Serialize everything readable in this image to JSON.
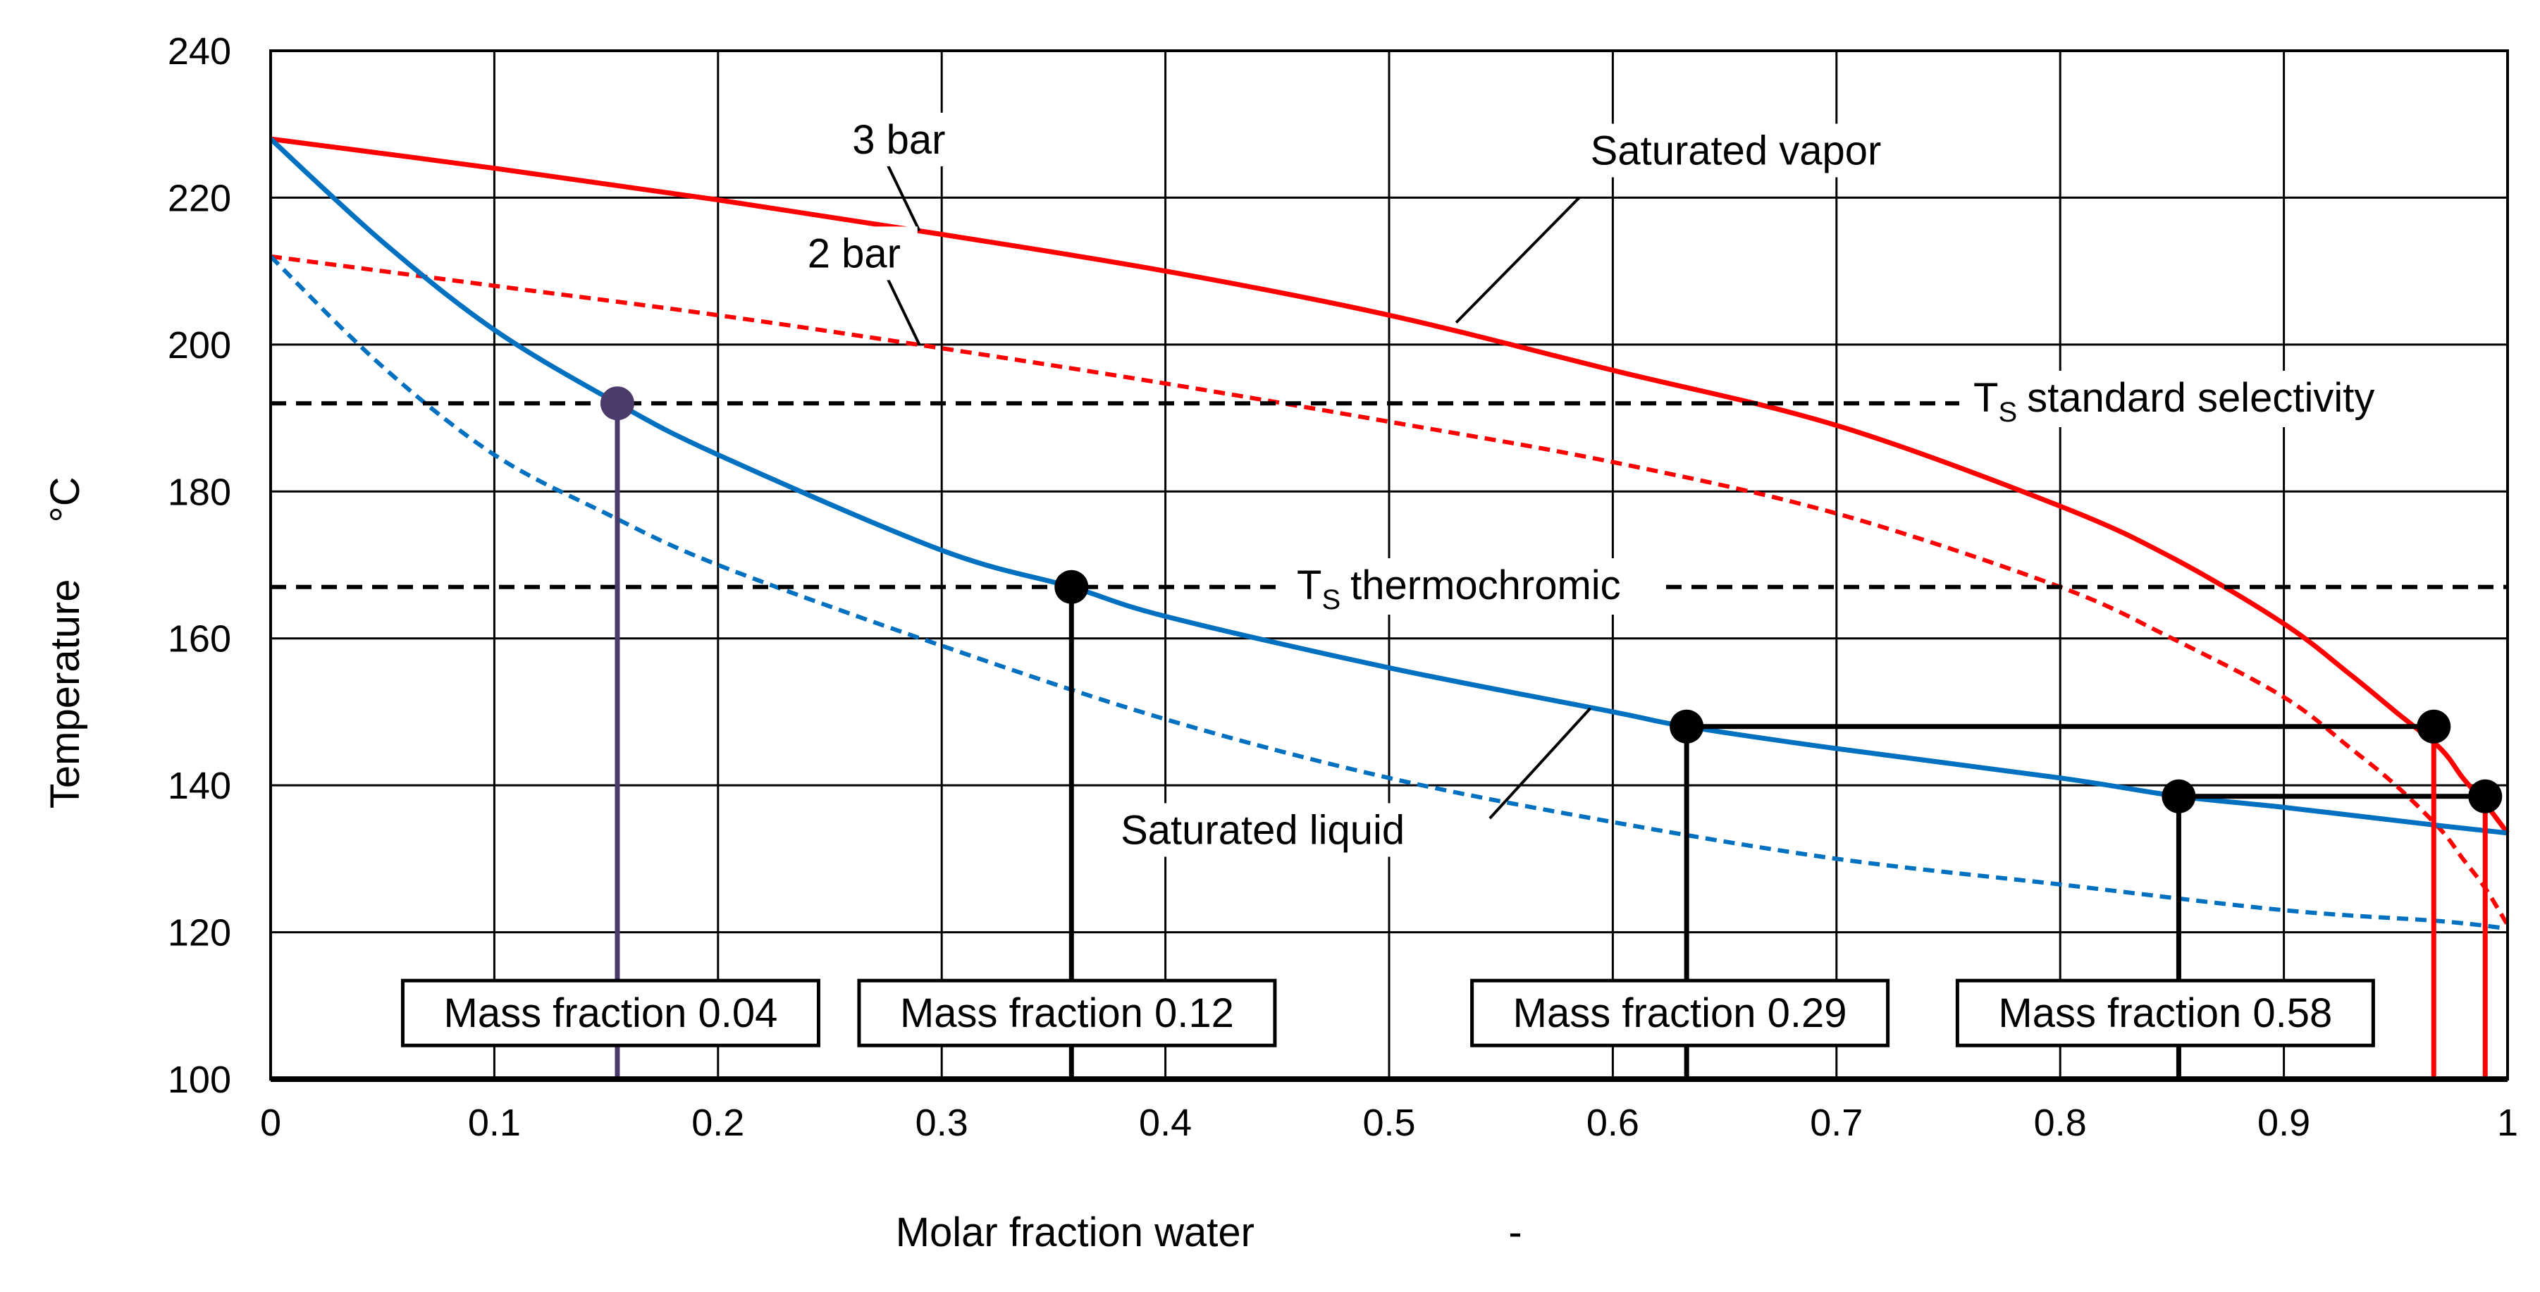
{
  "chart_data": {
    "type": "line",
    "title": "",
    "xlabel": "Molar fraction water",
    "xunit": "-",
    "ylabel": "Temperature",
    "yunit": "°C",
    "xlim": [
      0,
      1
    ],
    "ylim": [
      100,
      240
    ],
    "x_ticks": [
      0,
      0.1,
      0.2,
      0.3,
      0.4,
      0.5,
      0.6,
      0.7,
      0.8,
      0.9,
      1
    ],
    "x_tick_labels": [
      "0",
      "0.1",
      "0.2",
      "0.3",
      "0.4",
      "0.5",
      "0.6",
      "0.7",
      "0.8",
      "0.9",
      "1"
    ],
    "y_ticks": [
      100,
      120,
      140,
      160,
      180,
      200,
      220,
      240
    ],
    "y_tick_labels": [
      "100",
      "120",
      "140",
      "160",
      "180",
      "200",
      "220",
      "240"
    ],
    "grid": true,
    "series": [
      {
        "name": "Saturated vapor 3 bar",
        "color": "#ff0000",
        "dash": "solid",
        "x": [
          0,
          0.1,
          0.2,
          0.3,
          0.4,
          0.5,
          0.6,
          0.7,
          0.8,
          0.85,
          0.9,
          0.93,
          0.95,
          0.97,
          0.98,
          0.99,
          1.0
        ],
        "y": [
          228,
          224,
          219.7,
          215,
          210,
          204,
          196.5,
          189,
          178,
          171,
          162,
          155,
          150,
          145,
          141,
          137.5,
          133.5
        ]
      },
      {
        "name": "Saturated vapor 2 bar",
        "color": "#ff0000",
        "dash": "dashed",
        "x": [
          0,
          0.1,
          0.2,
          0.3,
          0.4,
          0.5,
          0.6,
          0.7,
          0.8,
          0.85,
          0.9,
          0.93,
          0.95,
          0.97,
          0.98,
          0.99,
          1.0
        ],
        "y": [
          212,
          208,
          204,
          199.5,
          194.7,
          189.5,
          184,
          177,
          167,
          160,
          152,
          145,
          140,
          134,
          130,
          126,
          121
        ]
      },
      {
        "name": "Saturated liquid 3 bar",
        "color": "#0070c0",
        "dash": "solid",
        "x": [
          0,
          0.05,
          0.1,
          0.155,
          0.2,
          0.3,
          0.358,
          0.4,
          0.5,
          0.6,
          0.633,
          0.7,
          0.8,
          0.853,
          0.9,
          0.97,
          1.0
        ],
        "y": [
          228,
          214,
          202,
          192,
          185,
          172,
          167,
          163,
          156,
          150,
          148,
          145,
          141,
          138.5,
          137,
          134.5,
          133.5
        ]
      },
      {
        "name": "Saturated liquid 2 bar",
        "color": "#0070c0",
        "dash": "dashed",
        "x": [
          0,
          0.05,
          0.1,
          0.15,
          0.2,
          0.3,
          0.4,
          0.5,
          0.6,
          0.7,
          0.8,
          0.9,
          0.97,
          1.0
        ],
        "y": [
          212,
          197,
          185,
          177,
          170,
          159,
          149,
          141,
          135,
          130,
          126.5,
          123,
          121.5,
          120.5
        ]
      }
    ],
    "hlines": [
      {
        "name": "TS standard selectivity",
        "y": 192,
        "label_main": "T",
        "label_sub": "S",
        "label_rest": "standard selectivity"
      },
      {
        "name": "TS thermochromic",
        "y": 167,
        "label_main": "T",
        "label_sub": "S",
        "label_rest": "thermochromic"
      }
    ],
    "markers": [
      {
        "x": 0.155,
        "y": 192,
        "color": "#4b3b6b"
      },
      {
        "x": 0.358,
        "y": 167,
        "color": "#000000"
      },
      {
        "x": 0.633,
        "y": 148,
        "color": "#000000"
      },
      {
        "x": 0.967,
        "y": 148,
        "color": "#000000"
      },
      {
        "x": 0.853,
        "y": 138.5,
        "color": "#000000"
      },
      {
        "x": 0.99,
        "y": 138.5,
        "color": "#000000"
      }
    ],
    "drop_lines": [
      {
        "x": 0.155,
        "y_top": 192,
        "color": "#4b3b6b"
      },
      {
        "x": 0.358,
        "y_top": 167,
        "color": "#000000"
      },
      {
        "x": 0.633,
        "y_top": 148,
        "color": "#000000"
      },
      {
        "x": 0.853,
        "y_top": 138.5,
        "color": "#000000"
      },
      {
        "x": 0.967,
        "y_top": 148,
        "color": "#ff0000"
      },
      {
        "x": 0.99,
        "y_top": 138.5,
        "color": "#ff0000"
      }
    ],
    "tie_lines": [
      {
        "x1": 0.633,
        "x2": 0.967,
        "y": 148
      },
      {
        "x1": 0.853,
        "x2": 0.99,
        "y": 138.5
      }
    ],
    "annotations": [
      {
        "text": "3 bar",
        "x": 0.26,
        "y": 226,
        "line_from": [
          0.275,
          225
        ],
        "line_to": [
          0.29,
          215.5
        ]
      },
      {
        "text": "2 bar",
        "x": 0.24,
        "y": 210.5,
        "line_from": [
          0.275,
          209.5
        ],
        "line_to": [
          0.29,
          200
        ]
      },
      {
        "text": "Saturated vapor",
        "x": 0.59,
        "y": 224.5,
        "line_from": [
          0.585,
          220
        ],
        "line_to": [
          0.53,
          203
        ]
      },
      {
        "text": "Saturated liquid",
        "x": 0.38,
        "y": 132,
        "line_from": [
          0.545,
          135.5
        ],
        "line_to": [
          0.59,
          150.5
        ]
      }
    ],
    "mass_fraction_boxes": [
      {
        "text": "Mass fraction 0.04",
        "x": 0.152,
        "y": 109
      },
      {
        "text": "Mass fraction 0.12",
        "x": 0.356,
        "y": 109
      },
      {
        "text": "Mass fraction 0.29",
        "x": 0.63,
        "y": 109
      },
      {
        "text": "Mass fraction 0.58",
        "x": 0.847,
        "y": 109
      }
    ]
  }
}
